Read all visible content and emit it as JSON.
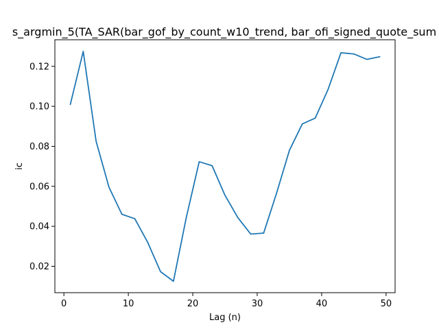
{
  "chart_data": {
    "type": "line",
    "title": "s_argmin_5(TA_SAR(bar_gof_by_count_w10_trend, bar_ofi_signed_quote_sum",
    "xlabel": "Lag (n)",
    "ylabel": "ic",
    "xlim": [
      -1.4,
      51.4
    ],
    "ylim": [
      0.0068,
      0.1333
    ],
    "x_ticks": [
      0,
      10,
      20,
      30,
      40,
      50
    ],
    "y_ticks": [
      0.02,
      0.04,
      0.06,
      0.08,
      0.1,
      0.12
    ],
    "x_tick_labels": [
      "0",
      "10",
      "20",
      "30",
      "40",
      "50"
    ],
    "y_tick_labels": [
      "0.02",
      "0.04",
      "0.06",
      "0.08",
      "0.10",
      "0.12"
    ],
    "grid": false,
    "series": [
      {
        "color": "#1f77b4",
        "x": [
          1,
          3,
          5,
          7,
          9,
          11,
          13,
          15,
          17,
          19,
          21,
          23,
          25,
          27,
          29,
          31,
          33,
          35,
          37,
          39,
          41,
          43,
          45,
          47,
          49
        ],
        "y": [
          0.101,
          0.1275,
          0.0825,
          0.0595,
          0.046,
          0.0438,
          0.032,
          0.0173,
          0.0125,
          0.0445,
          0.0723,
          0.0703,
          0.0555,
          0.0443,
          0.0361,
          0.0366,
          0.0565,
          0.078,
          0.0912,
          0.0941,
          0.1085,
          0.1268,
          0.1262,
          0.1235,
          0.1248
        ]
      }
    ]
  }
}
